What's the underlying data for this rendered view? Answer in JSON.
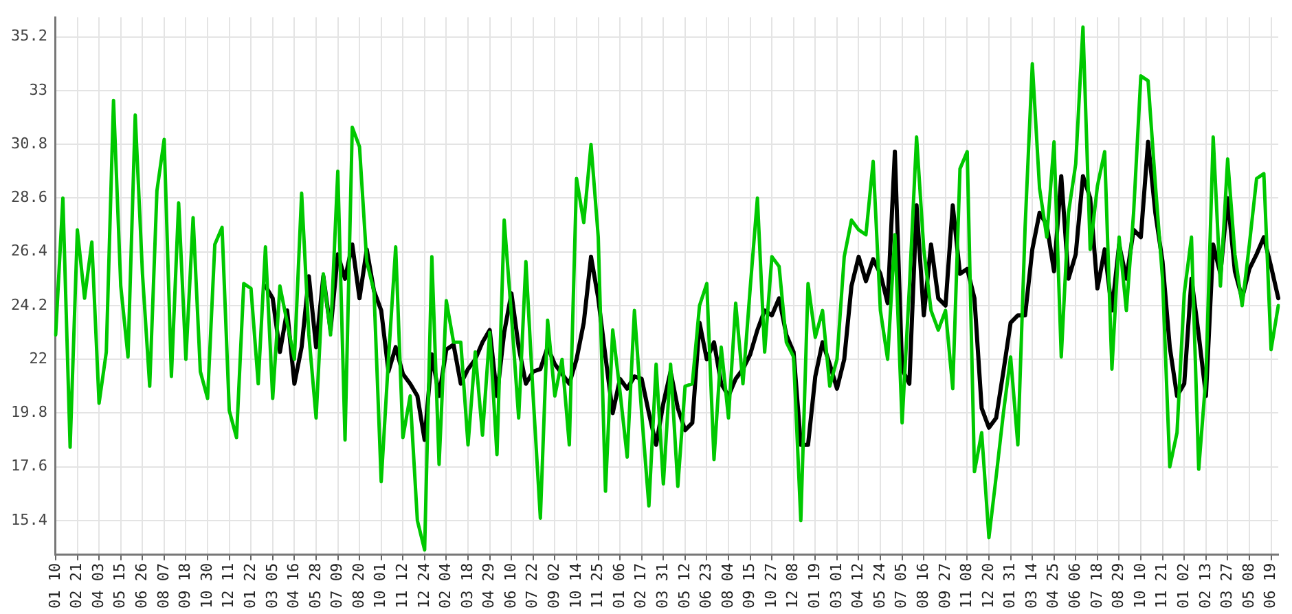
{
  "chart_data": {
    "type": "line",
    "categories": [
      "01 10",
      null,
      null,
      "02 21",
      null,
      null,
      "04 03",
      null,
      null,
      "05 15",
      null,
      null,
      "06 26",
      null,
      null,
      "08 07",
      null,
      null,
      "09 18",
      null,
      null,
      "10 30",
      null,
      null,
      "12 11",
      null,
      null,
      "01 22",
      null,
      null,
      "03 05",
      null,
      null,
      "04 16",
      null,
      null,
      "05 28",
      null,
      null,
      "07 09",
      null,
      null,
      "08 20",
      null,
      null,
      "10 01",
      null,
      null,
      "11 12",
      null,
      null,
      "12 24",
      null,
      null,
      "02 04",
      null,
      null,
      "03 18",
      null,
      null,
      "04 29",
      null,
      null,
      "06 10",
      null,
      null,
      "07 22",
      null,
      null,
      "09 02",
      null,
      null,
      "10 14",
      null,
      null,
      "11 25",
      null,
      null,
      "01 06",
      null,
      null,
      "02 17",
      null,
      null,
      "03 31",
      null,
      null,
      "05 12",
      null,
      null,
      "06 23",
      null,
      null,
      "08 04",
      null,
      null,
      "09 15",
      null,
      null,
      "10 27",
      null,
      null,
      "12 08",
      null,
      null,
      "01 19",
      null,
      null,
      "03 01",
      null,
      null,
      "04 12",
      null,
      null,
      "05 24",
      null,
      null,
      "07 05",
      null,
      null,
      "08 16",
      null,
      null,
      "09 27",
      null,
      null,
      "11 08",
      null,
      null,
      "12 20",
      null,
      null,
      "01 31",
      null,
      null,
      "03 14",
      null,
      null,
      "04 25",
      null,
      null,
      "06 06",
      null,
      null,
      "07 18",
      null,
      null,
      "08 29",
      null,
      null,
      "10 10",
      null,
      null,
      "11 21",
      null,
      null,
      "01 02",
      null,
      null,
      "02 13",
      null,
      null,
      "03 27",
      null,
      null,
      "05 08",
      null,
      null,
      "06 19",
      null
    ],
    "series": [
      {
        "color": "#00c800",
        "values": [
          23.0,
          28.6,
          18.4,
          27.3,
          24.5,
          26.8,
          20.2,
          22.3,
          32.6,
          25.0,
          22.1,
          32.0,
          25.5,
          20.9,
          28.9,
          31.0,
          21.3,
          28.4,
          22.0,
          27.8,
          21.5,
          20.4,
          26.7,
          27.4,
          19.9,
          18.8,
          25.1,
          24.9,
          21.0,
          26.6,
          20.4,
          25.0,
          23.5,
          22.0,
          28.8,
          23.0,
          19.6,
          25.5,
          23.0,
          29.7,
          18.7,
          31.5,
          30.7,
          26.0,
          24.8,
          17.0,
          22.0,
          26.6,
          18.8,
          20.5,
          15.4,
          14.2,
          26.2,
          17.7,
          24.4,
          22.7,
          22.7,
          18.5,
          22.3,
          18.9,
          23.1,
          18.1,
          27.7,
          23.8,
          19.6,
          26.0,
          20.5,
          15.5,
          23.6,
          20.5,
          22.0,
          18.5,
          29.4,
          27.6,
          30.8,
          27.0,
          16.6,
          23.2,
          20.7,
          18.0,
          24.0,
          19.8,
          16.0,
          21.8,
          16.9,
          21.8,
          16.8,
          20.9,
          21.0,
          24.2,
          25.1,
          17.9,
          22.5,
          19.6,
          24.3,
          21.0,
          24.9,
          28.6,
          22.3,
          26.2,
          25.8,
          22.7,
          22.1,
          15.4,
          25.1,
          22.9,
          24.0,
          20.9,
          22.0,
          26.2,
          27.7,
          27.3,
          27.1,
          30.1,
          24.0,
          22.0,
          27.1,
          19.4,
          24.9,
          31.1,
          26.5,
          24.0,
          23.2,
          24.0,
          20.8,
          29.8,
          30.5,
          17.4,
          19.0,
          14.7,
          17.2,
          19.8,
          22.1,
          18.5,
          27.4,
          34.1,
          29.0,
          27.0,
          30.9,
          22.1,
          28.0,
          30.0,
          35.6,
          26.5,
          29.1,
          30.5,
          21.6,
          27.0,
          24.0,
          28.0,
          33.6,
          33.4,
          29.2,
          25.3,
          17.6,
          19.0,
          24.7,
          27.0,
          17.5,
          21.3,
          31.1,
          25.0,
          30.2,
          26.3,
          24.2,
          26.7,
          29.4,
          29.6,
          22.4,
          24.2
        ]
      },
      {
        "color": "#000000",
        "values": [
          null,
          null,
          null,
          null,
          null,
          null,
          null,
          null,
          null,
          null,
          null,
          null,
          null,
          null,
          null,
          null,
          null,
          null,
          null,
          null,
          null,
          null,
          null,
          null,
          null,
          null,
          null,
          null,
          null,
          25.0,
          24.5,
          22.3,
          24.0,
          21.0,
          22.5,
          25.4,
          22.5,
          25.4,
          23.2,
          26.3,
          25.3,
          26.7,
          24.5,
          26.5,
          24.8,
          24.0,
          21.5,
          22.5,
          21.4,
          21.0,
          20.5,
          18.7,
          22.2,
          20.5,
          22.4,
          22.6,
          21.0,
          21.6,
          22.0,
          22.7,
          23.2,
          20.5,
          23.1,
          24.7,
          22.5,
          21.0,
          21.5,
          21.6,
          22.5,
          21.8,
          21.4,
          21.0,
          22.0,
          23.5,
          26.2,
          24.5,
          22.1,
          19.8,
          21.2,
          20.8,
          21.3,
          21.2,
          19.8,
          18.5,
          20.2,
          21.5,
          20.0,
          19.1,
          19.4,
          23.5,
          22.0,
          22.7,
          21.0,
          20.5,
          21.2,
          21.6,
          22.2,
          23.2,
          24.0,
          23.8,
          24.5,
          23.0,
          22.3,
          18.5,
          18.5,
          21.3,
          22.7,
          21.8,
          20.8,
          22.0,
          25.0,
          26.2,
          25.2,
          26.1,
          25.5,
          24.3,
          30.5,
          21.6,
          21.0,
          28.3,
          23.8,
          26.7,
          24.5,
          24.2,
          28.3,
          25.5,
          25.7,
          24.5,
          20.0,
          19.2,
          19.6,
          21.5,
          23.5,
          23.8,
          23.8,
          26.5,
          28.0,
          27.5,
          25.6,
          29.5,
          25.3,
          26.3,
          29.5,
          28.6,
          24.9,
          26.5,
          24.0,
          26.7,
          25.3,
          27.3,
          27.0,
          30.9,
          28.0,
          26.0,
          22.5,
          20.5,
          21.0,
          25.3,
          23.0,
          20.5,
          26.7,
          25.5,
          28.6,
          25.6,
          24.5,
          25.7,
          26.3,
          27.0,
          25.8,
          24.5
        ]
      }
    ],
    "ylim": [
      14,
      36
    ],
    "yticks": [
      15.4,
      17.6,
      19.8,
      22,
      24.2,
      26.4,
      28.6,
      30.8,
      33,
      35.2
    ],
    "grid": true,
    "legend": false,
    "marker": "none",
    "line_style": "solid"
  }
}
